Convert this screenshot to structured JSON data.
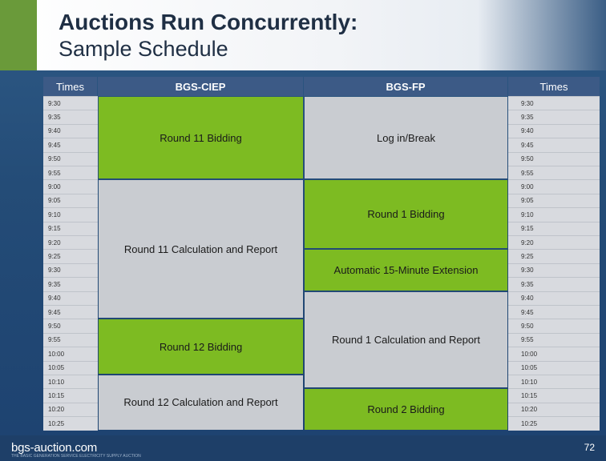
{
  "title": {
    "line1": "Auctions Run Concurrently:",
    "line2": "Sample Schedule"
  },
  "table": {
    "headers": [
      "Times",
      "BGS-CIEP",
      "BGS-FP",
      "Times"
    ],
    "times": [
      "9:30",
      "9:35",
      "9:40",
      "9:45",
      "9:50",
      "9:55",
      "9:00",
      "9:05",
      "9:10",
      "9:15",
      "9:20",
      "9:25",
      "9:30",
      "9:35",
      "9:40",
      "9:45",
      "9:50",
      "9:55",
      "10:00",
      "10:05",
      "10:10",
      "10:15",
      "10:20",
      "10:25"
    ],
    "ciep_blocks": [
      {
        "label": "Round 11 Bidding",
        "start_row": 0,
        "end_row": 5,
        "shade": "green"
      },
      {
        "label": "Round 11 Calculation and Report",
        "start_row": 6,
        "end_row": 15,
        "shade": "grey"
      },
      {
        "label": "Round 12 Bidding",
        "start_row": 16,
        "end_row": 19,
        "shade": "green"
      },
      {
        "label": "Round 12 Calculation and Report",
        "start_row": 20,
        "end_row": 23,
        "shade": "grey"
      }
    ],
    "fp_blocks": [
      {
        "label": "Log in/Break",
        "start_row": 0,
        "end_row": 5,
        "shade": "grey"
      },
      {
        "label": "Round 1 Bidding",
        "start_row": 6,
        "end_row": 10,
        "shade": "green"
      },
      {
        "label": "Automatic 15-Minute Extension",
        "start_row": 11,
        "end_row": 13,
        "shade": "green"
      },
      {
        "label": "Round 1 Calculation and Report",
        "start_row": 14,
        "end_row": 20,
        "shade": "grey"
      },
      {
        "label": "Round 2 Bidding",
        "start_row": 21,
        "end_row": 23,
        "shade": "green"
      }
    ]
  },
  "footer": {
    "logo": "bgs-auction.com",
    "tagline": "THE BASIC GENERATION SERVICE ELECTRICITY SUPPLY AUCTION",
    "page_number": "72"
  },
  "colors": {
    "green": "#7dbb22",
    "grey": "#c9ccd1",
    "header_blue": "#3c5a86",
    "time_cell": "#d8dadf"
  }
}
